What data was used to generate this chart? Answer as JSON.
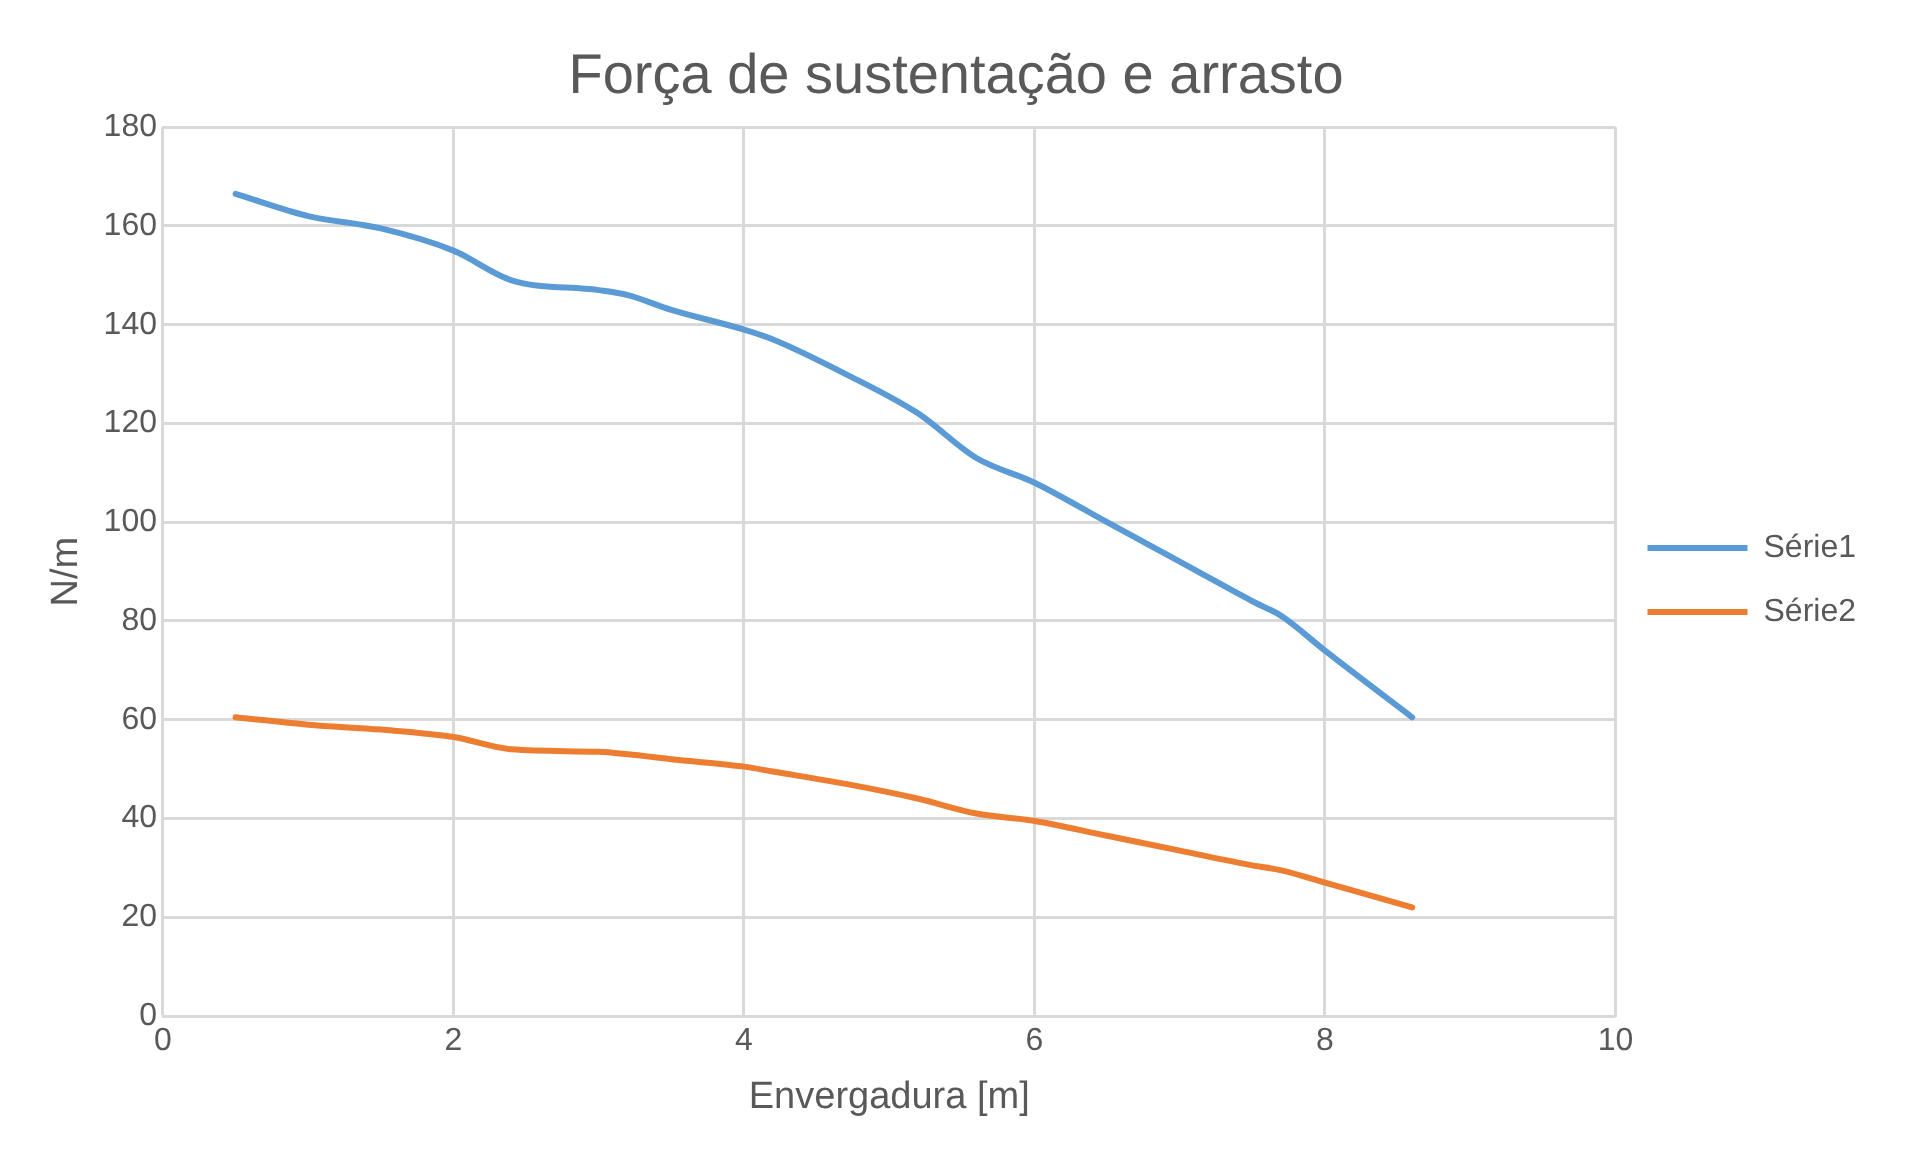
{
  "chart_data": {
    "type": "line",
    "title": "Força de sustentação e arrasto",
    "xlabel": "Envergadura [m]",
    "ylabel": "N/m",
    "x": [
      0.5,
      1,
      1.5,
      2,
      2.4,
      3,
      3.2,
      3.5,
      4,
      4.2,
      4.7,
      5.2,
      5.6,
      6,
      6.5,
      7,
      7.5,
      7.7,
      8,
      8.6
    ],
    "series": [
      {
        "name": "Série1",
        "color": "#5b9bd5",
        "values": [
          166.5,
          162,
          159.5,
          155,
          149,
          147,
          146,
          143,
          139,
          137,
          130,
          122,
          113,
          108,
          100,
          92,
          84,
          81,
          74,
          60.5
        ]
      },
      {
        "name": "Série2",
        "color": "#ed7d31",
        "values": [
          60.5,
          59,
          58,
          56.5,
          54,
          53.5,
          53,
          52,
          50.5,
          49.5,
          47,
          44,
          41,
          39.5,
          36.5,
          33.5,
          30.5,
          29.5,
          27,
          22
        ]
      }
    ],
    "xlim": [
      0,
      10
    ],
    "xticks": [
      0,
      2,
      4,
      6,
      8,
      10
    ],
    "ylim": [
      0,
      180
    ],
    "yticks": [
      0,
      20,
      40,
      60,
      80,
      100,
      120,
      140,
      160,
      180
    ],
    "grid": true,
    "legend": "right",
    "marker": "none",
    "line_style": "solid"
  }
}
